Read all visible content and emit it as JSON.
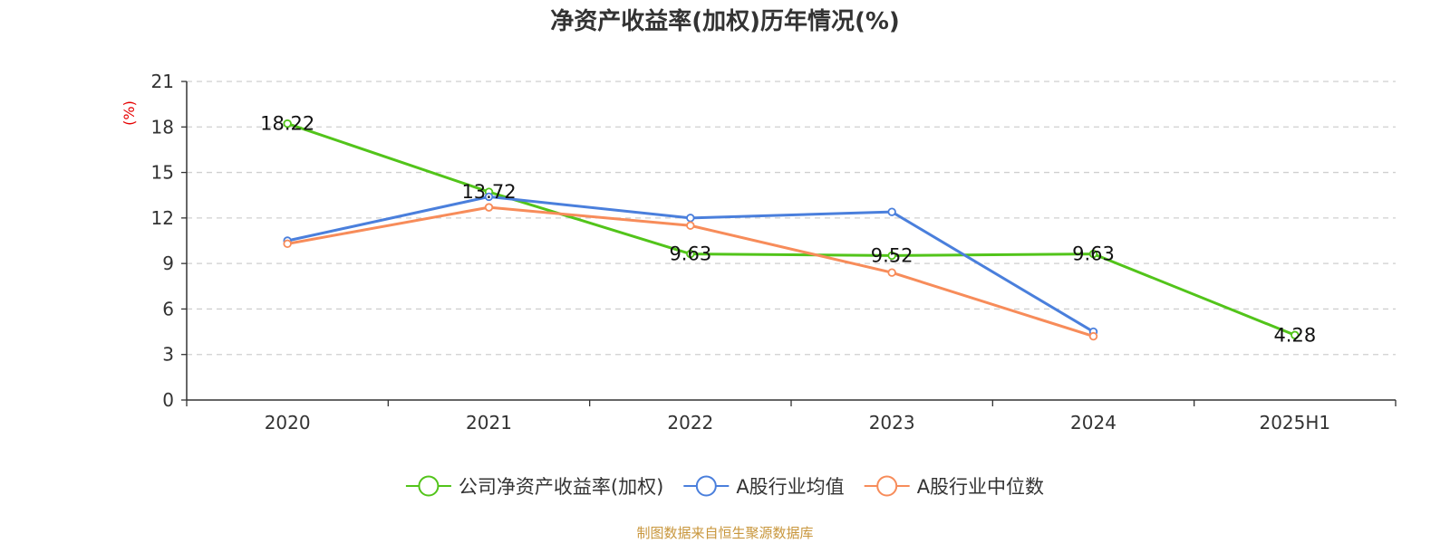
{
  "chart_data": {
    "type": "line",
    "title": "净资产收益率(加权)历年情况(%)",
    "ylabel": "(%)",
    "xlabel": "",
    "categories": [
      "2020",
      "2021",
      "2022",
      "2023",
      "2024",
      "2025H1"
    ],
    "ylim": [
      0,
      21
    ],
    "yticks": [
      0,
      3,
      6,
      9,
      12,
      15,
      18,
      21
    ],
    "grid": true,
    "legend_position": "bottom",
    "series": [
      {
        "name": "公司净资产收益率(加权)",
        "color": "#52c41a",
        "values": [
          18.22,
          13.72,
          9.63,
          9.52,
          9.63,
          4.28
        ],
        "labels": [
          "18.22",
          "13.72",
          "9.63",
          "9.52",
          "9.63",
          "4.28"
        ]
      },
      {
        "name": "A股行业均值",
        "color": "#4a7fdc",
        "values": [
          10.5,
          13.4,
          12.0,
          12.4,
          4.5,
          null
        ]
      },
      {
        "name": "A股行业中位数",
        "color": "#f78c5a",
        "values": [
          10.3,
          12.7,
          11.5,
          8.4,
          4.2,
          null
        ]
      }
    ],
    "source": "制图数据来自恒生聚源数据库"
  }
}
